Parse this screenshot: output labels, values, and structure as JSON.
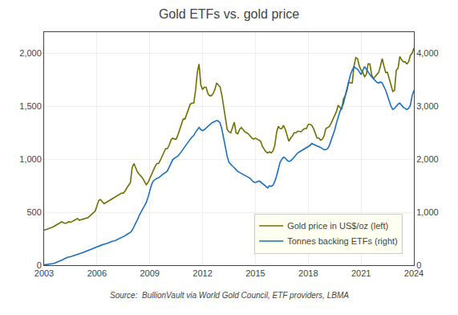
{
  "chart_data": {
    "type": "line",
    "title": "Gold ETFs vs. gold price",
    "annotations": [
      "Source:  BullionVault via World Gold Council, ETF providers, LBMA"
    ],
    "grid": true,
    "legend": "lower right",
    "xlim": [
      2003,
      2024
    ],
    "xticks": [
      2003,
      2006,
      2009,
      2012,
      2015,
      2018,
      2021,
      2024
    ],
    "ylim": [
      0,
      2200
    ],
    "yticks": [
      0,
      500,
      {
        "value": 1000,
        "label": "1,000"
      },
      {
        "value": 1500,
        "label": "1,500"
      },
      {
        "value": 2000,
        "label": "2,000"
      }
    ],
    "y2lim": [
      0,
      4400
    ],
    "y2ticks": [
      0,
      {
        "value": 1000,
        "label": "1,000"
      },
      {
        "value": 2000,
        "label": "2,000"
      },
      {
        "value": 3000,
        "label": "3,000"
      },
      {
        "value": 4000,
        "label": "4,000"
      }
    ],
    "x": [
      2003.0,
      2003.1,
      2003.2,
      2003.3,
      2003.4,
      2003.5,
      2003.6,
      2003.7,
      2003.8,
      2003.9,
      2004.0,
      2004.1,
      2004.2,
      2004.3,
      2004.4,
      2004.5,
      2004.6,
      2004.7,
      2004.8,
      2004.9,
      2005.0,
      2005.1,
      2005.2,
      2005.3,
      2005.4,
      2005.5,
      2005.6,
      2005.7,
      2005.8,
      2005.9,
      2006.0,
      2006.1,
      2006.2,
      2006.3,
      2006.4,
      2006.5,
      2006.6,
      2006.7,
      2006.8,
      2006.9,
      2007.0,
      2007.1,
      2007.2,
      2007.3,
      2007.4,
      2007.5,
      2007.6,
      2007.7,
      2007.8,
      2007.9,
      2008.0,
      2008.1,
      2008.2,
      2008.3,
      2008.4,
      2008.5,
      2008.6,
      2008.7,
      2008.8,
      2008.9,
      2009.0,
      2009.1,
      2009.2,
      2009.3,
      2009.4,
      2009.5,
      2009.6,
      2009.7,
      2009.8,
      2009.9,
      2010.0,
      2010.1,
      2010.2,
      2010.3,
      2010.4,
      2010.5,
      2010.6,
      2010.7,
      2010.8,
      2010.9,
      2011.0,
      2011.1,
      2011.2,
      2011.3,
      2011.4,
      2011.5,
      2011.6,
      2011.7,
      2011.8,
      2011.9,
      2012.0,
      2012.1,
      2012.2,
      2012.3,
      2012.4,
      2012.5,
      2012.6,
      2012.7,
      2012.8,
      2012.9,
      2013.0,
      2013.1,
      2013.2,
      2013.3,
      2013.4,
      2013.5,
      2013.6,
      2013.7,
      2013.8,
      2013.9,
      2014.0,
      2014.1,
      2014.2,
      2014.3,
      2014.4,
      2014.5,
      2014.6,
      2014.7,
      2014.8,
      2014.9,
      2015.0,
      2015.1,
      2015.2,
      2015.3,
      2015.4,
      2015.5,
      2015.6,
      2015.7,
      2015.8,
      2015.9,
      2016.0,
      2016.1,
      2016.2,
      2016.3,
      2016.4,
      2016.5,
      2016.6,
      2016.7,
      2016.8,
      2016.9,
      2017.0,
      2017.1,
      2017.2,
      2017.3,
      2017.4,
      2017.5,
      2017.6,
      2017.7,
      2017.8,
      2017.9,
      2018.0,
      2018.1,
      2018.2,
      2018.3,
      2018.4,
      2018.5,
      2018.6,
      2018.7,
      2018.8,
      2018.9,
      2019.0,
      2019.1,
      2019.2,
      2019.3,
      2019.4,
      2019.5,
      2019.6,
      2019.7,
      2019.8,
      2019.9,
      2020.0,
      2020.1,
      2020.2,
      2020.3,
      2020.4,
      2020.5,
      2020.6,
      2020.7,
      2020.8,
      2020.9,
      2021.0,
      2021.1,
      2021.2,
      2021.3,
      2021.4,
      2021.5,
      2021.6,
      2021.7,
      2021.8,
      2021.9,
      2022.0,
      2022.1,
      2022.2,
      2022.3,
      2022.4,
      2022.5,
      2022.6,
      2022.7,
      2022.8,
      2022.9,
      2023.0,
      2023.1,
      2023.2,
      2023.3,
      2023.4,
      2023.5,
      2023.6,
      2023.7,
      2023.8,
      2023.9,
      2024.0
    ],
    "series": [
      {
        "name": "Gold price in US$/oz (left)",
        "color": "#707000",
        "values": [
          330,
          335,
          340,
          345,
          355,
          360,
          370,
          380,
          390,
          400,
          410,
          400,
          395,
          400,
          410,
          405,
          415,
          425,
          435,
          440,
          425,
          430,
          435,
          440,
          445,
          450,
          465,
          480,
          500,
          510,
          560,
          610,
          620,
          600,
          580,
          590,
          600,
          615,
          625,
          635,
          640,
          650,
          660,
          670,
          680,
          680,
          700,
          730,
          760,
          780,
          920,
          960,
          920,
          880,
          860,
          840,
          820,
          790,
          760,
          780,
          820,
          850,
          890,
          930,
          960,
          960,
          990,
          1030,
          1070,
          1100,
          1100,
          1130,
          1180,
          1200,
          1190,
          1190,
          1230,
          1280,
          1340,
          1380,
          1380,
          1430,
          1480,
          1520,
          1530,
          1530,
          1650,
          1820,
          1900,
          1700,
          1660,
          1680,
          1680,
          1620,
          1600,
          1600,
          1620,
          1660,
          1720,
          1700,
          1680,
          1600,
          1500,
          1380,
          1280,
          1260,
          1250,
          1300,
          1350,
          1250,
          1240,
          1280,
          1300,
          1280,
          1260,
          1250,
          1240,
          1220,
          1200,
          1190,
          1200,
          1190,
          1180,
          1170,
          1120,
          1090,
          1070,
          1060,
          1070,
          1060,
          1080,
          1130,
          1250,
          1310,
          1290,
          1290,
          1320,
          1280,
          1220,
          1170,
          1200,
          1220,
          1250,
          1250,
          1265,
          1265,
          1260,
          1280,
          1290,
          1290,
          1330,
          1330,
          1320,
          1290,
          1240,
          1200,
          1200,
          1180,
          1190,
          1220,
          1290,
          1300,
          1310,
          1340,
          1380,
          1420,
          1450,
          1510,
          1490,
          1470,
          1570,
          1600,
          1650,
          1730,
          1720,
          1720,
          1880,
          1960,
          1950,
          1880,
          1840,
          1820,
          1780,
          1800,
          1900,
          1900,
          1800,
          1760,
          1780,
          1800,
          1820,
          1880,
          1950,
          1880,
          1820,
          1820,
          1760,
          1700,
          1640,
          1650,
          1840,
          1860,
          1970,
          1940,
          1920,
          1920,
          1900,
          1920,
          1980,
          2000,
          2050
        ]
      },
      {
        "name": "Tonnes backing ETFs (right)",
        "color": "#1a6fbe",
        "axis": "y2",
        "values": [
          5,
          8,
          12,
          18,
          25,
          30,
          38,
          50,
          65,
          75,
          90,
          110,
          130,
          145,
          155,
          160,
          170,
          185,
          195,
          200,
          210,
          220,
          235,
          250,
          265,
          275,
          290,
          305,
          320,
          335,
          345,
          360,
          375,
          385,
          395,
          400,
          415,
          430,
          445,
          455,
          460,
          475,
          490,
          510,
          525,
          530,
          555,
          580,
          600,
          620,
          660,
          720,
          780,
          860,
          940,
          990,
          1060,
          1120,
          1180,
          1280,
          1420,
          1520,
          1590,
          1620,
          1640,
          1650,
          1680,
          1700,
          1730,
          1750,
          1780,
          1850,
          1930,
          1990,
          2020,
          2040,
          2060,
          2100,
          2150,
          2200,
          2250,
          2300,
          2340,
          2380,
          2420,
          2450,
          2510,
          2560,
          2600,
          2560,
          2540,
          2560,
          2590,
          2620,
          2660,
          2680,
          2700,
          2720,
          2730,
          2720,
          2680,
          2560,
          2380,
          2200,
          2050,
          1940,
          1900,
          1870,
          1840,
          1800,
          1770,
          1750,
          1730,
          1710,
          1690,
          1680,
          1660,
          1640,
          1600,
          1570,
          1560,
          1570,
          1590,
          1570,
          1540,
          1510,
          1490,
          1460,
          1500,
          1490,
          1510,
          1580,
          1680,
          1820,
          1940,
          2000,
          2040,
          2020,
          1980,
          1960,
          1970,
          2000,
          2040,
          2080,
          2120,
          2140,
          2160,
          2180,
          2200,
          2220,
          2240,
          2260,
          2300,
          2280,
          2260,
          2250,
          2240,
          2220,
          2190,
          2180,
          2180,
          2200,
          2260,
          2350,
          2460,
          2550,
          2680,
          2800,
          2900,
          2980,
          3050,
          3200,
          3350,
          3500,
          3600,
          3680,
          3750,
          3720,
          3700,
          3650,
          3600,
          3680,
          3750,
          3700,
          3640,
          3600,
          3560,
          3520,
          3480,
          3450,
          3440,
          3460,
          3440,
          3380,
          3300,
          3200,
          3100,
          3000,
          2940,
          2960,
          3000,
          3040,
          3060,
          3020,
          2980,
          2960,
          2940,
          2960,
          3020,
          3200,
          3300
        ]
      }
    ]
  }
}
